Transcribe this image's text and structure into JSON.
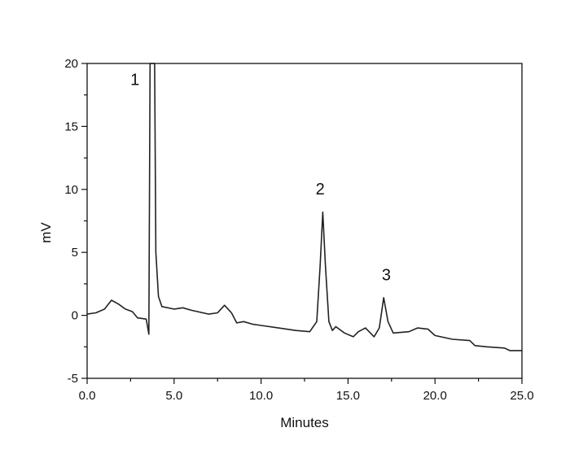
{
  "chart_data": {
    "type": "line",
    "title": "",
    "xlabel": "Minutes",
    "ylabel": "mV",
    "xlim": [
      0,
      25
    ],
    "ylim": [
      -5,
      20
    ],
    "xticks": [
      0,
      5,
      10,
      15,
      20,
      25
    ],
    "xtick_labels": [
      "0.0",
      "5.0",
      "10.0",
      "15.0",
      "20.0",
      "25.0"
    ],
    "yticks": [
      -5,
      0,
      5,
      10,
      15,
      20
    ],
    "ytick_labels": [
      "-5",
      "0",
      "5",
      "10",
      "15",
      "20"
    ],
    "grid": false,
    "line_color": "#222222",
    "series": [
      {
        "x": [
          0,
          0.5,
          1,
          1.4,
          1.8,
          2.2,
          2.6,
          2.9,
          3.4,
          3.55,
          3.62,
          3.88,
          3.95,
          4.1,
          4.3,
          5,
          5.5,
          6,
          7,
          7.5,
          7.9,
          8.3,
          8.6,
          9,
          9.5,
          10,
          11,
          12,
          12.8,
          13.2,
          13.4,
          13.55,
          13.7,
          13.9,
          14.1,
          14.3,
          14.8,
          15.3,
          15.6,
          16,
          16.5,
          16.8,
          17.05,
          17.3,
          17.6,
          18.5,
          19,
          19.6,
          20,
          21,
          22,
          22.3,
          23,
          24,
          24.3,
          25
        ],
        "y": [
          0.1,
          0.2,
          0.5,
          1.2,
          0.9,
          0.5,
          0.3,
          -0.2,
          -0.3,
          -1.5,
          20,
          20,
          5,
          1.5,
          0.7,
          0.5,
          0.6,
          0.4,
          0.1,
          0.2,
          0.8,
          0.2,
          -0.6,
          -0.5,
          -0.7,
          -0.8,
          -1.0,
          -1.2,
          -1.3,
          -0.5,
          4,
          8.2,
          4,
          -0.5,
          -1.2,
          -0.9,
          -1.4,
          -1.7,
          -1.3,
          -1.0,
          -1.7,
          -1.0,
          1.4,
          -0.5,
          -1.4,
          -1.3,
          -1.0,
          -1.1,
          -1.6,
          -1.9,
          -2.0,
          -2.4,
          -2.5,
          -2.6,
          -2.8,
          -2.8
        ]
      }
    ],
    "annotations": [
      {
        "text": "1",
        "x": 2.75,
        "y": 18.3
      },
      {
        "text": "2",
        "x": 13.4,
        "y": 9.6
      },
      {
        "text": "3",
        "x": 17.2,
        "y": 2.8
      }
    ]
  }
}
